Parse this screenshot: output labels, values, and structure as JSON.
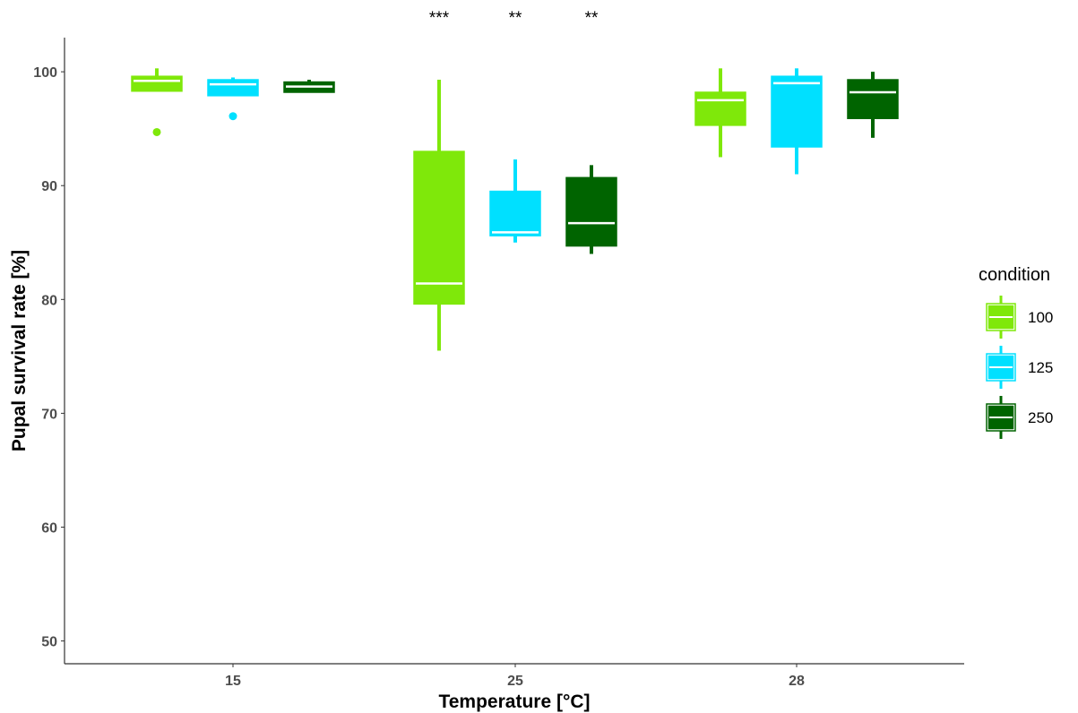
{
  "chart_data": {
    "type": "boxplot",
    "xlabel": "Temperature [°C]",
    "ylabel": "Pupal survival rate [%]",
    "ylim": [
      48,
      103
    ],
    "yticks": [
      50,
      60,
      70,
      80,
      90,
      100
    ],
    "categories": [
      "15",
      "25",
      "28"
    ],
    "grid": false,
    "legend": {
      "title": "condition",
      "position": "right",
      "entries": [
        "100",
        "125",
        "250"
      ]
    },
    "series": [
      {
        "name": "100",
        "color": "#7fe80a",
        "boxes": [
          {
            "category": "15",
            "whisker_low": 98.3,
            "q1": 98.3,
            "median": 99.2,
            "q3": 99.6,
            "whisker_high": 100.3,
            "outliers": [
              94.7
            ]
          },
          {
            "category": "25",
            "whisker_low": 75.5,
            "q1": 79.6,
            "median": 81.4,
            "q3": 93.0,
            "whisker_high": 99.3,
            "outliers": []
          },
          {
            "category": "28",
            "whisker_low": 92.5,
            "q1": 95.3,
            "median": 97.5,
            "q3": 98.2,
            "whisker_high": 100.3,
            "outliers": []
          }
        ]
      },
      {
        "name": "125",
        "color": "#00e0ff",
        "boxes": [
          {
            "category": "15",
            "whisker_low": 97.9,
            "q1": 97.9,
            "median": 98.9,
            "q3": 99.3,
            "whisker_high": 99.5,
            "outliers": [
              96.1
            ]
          },
          {
            "category": "25",
            "whisker_low": 85.0,
            "q1": 85.6,
            "median": 85.9,
            "q3": 89.5,
            "whisker_high": 92.3,
            "outliers": []
          },
          {
            "category": "28",
            "whisker_low": 91.0,
            "q1": 93.4,
            "median": 99.0,
            "q3": 99.6,
            "whisker_high": 100.3,
            "outliers": []
          }
        ]
      },
      {
        "name": "250",
        "color": "#006400",
        "boxes": [
          {
            "category": "15",
            "whisker_low": 98.2,
            "q1": 98.2,
            "median": 98.7,
            "q3": 99.1,
            "whisker_high": 99.3,
            "outliers": []
          },
          {
            "category": "25",
            "whisker_low": 84.0,
            "q1": 84.7,
            "median": 86.7,
            "q3": 90.7,
            "whisker_high": 91.8,
            "outliers": []
          },
          {
            "category": "28",
            "whisker_low": 94.2,
            "q1": 95.9,
            "median": 98.2,
            "q3": 99.3,
            "whisker_high": 100.0,
            "outliers": []
          }
        ]
      }
    ],
    "annotations": [
      {
        "category": "25",
        "series": "100",
        "text": "***"
      },
      {
        "category": "25",
        "series": "125",
        "text": "**"
      },
      {
        "category": "25",
        "series": "250",
        "text": "**"
      }
    ]
  }
}
